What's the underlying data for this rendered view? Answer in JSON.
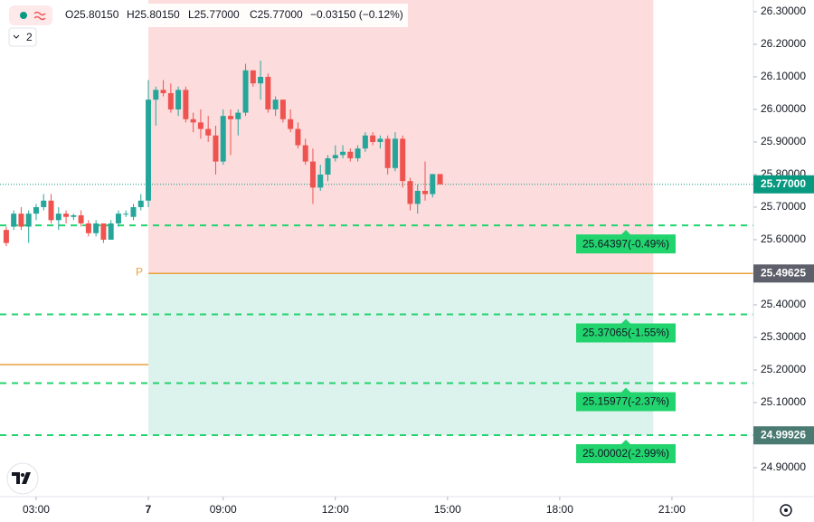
{
  "chart_data": {
    "type": "candlestick",
    "ohlc": [
      "O25.80150",
      "H25.80150",
      "L25.77000",
      "C25.77000",
      "−0.03150 (−0.12%)"
    ],
    "indicator_count": "2",
    "up_color": "#26a69a",
    "down_color": "#ef5350",
    "grid": false,
    "candles": {
      "x": [
        "02:12",
        "02:24",
        "02:36",
        "02:48",
        "03:00",
        "03:12",
        "03:24",
        "03:36",
        "03:48",
        "04:00",
        "04:12",
        "04:24",
        "04:36",
        "04:48",
        "05:00",
        "05:12",
        "05:24",
        "05:36",
        "05:48",
        "07:00",
        "07:12",
        "07:24",
        "07:36",
        "07:48",
        "08:00",
        "08:12",
        "08:24",
        "08:36",
        "08:48",
        "09:00",
        "09:12",
        "09:24",
        "09:36",
        "09:48",
        "10:00",
        "10:12",
        "10:24",
        "10:36",
        "10:48",
        "11:00",
        "11:12",
        "11:24",
        "11:36",
        "11:48",
        "12:00",
        "12:12",
        "12:24",
        "12:36",
        "12:48",
        "13:00",
        "13:12",
        "13:24",
        "13:36",
        "13:48",
        "14:00",
        "14:12",
        "14:24",
        "14:36",
        "14:48"
      ],
      "open": [
        25.63,
        25.64,
        25.68,
        25.64,
        25.68,
        25.7,
        25.72,
        25.66,
        25.68,
        25.67,
        25.675,
        25.65,
        25.62,
        25.65,
        25.6,
        25.65,
        25.68,
        25.67,
        25.7,
        25.72,
        26.03,
        26.06,
        26.05,
        26.0,
        26.06,
        25.97,
        25.96,
        25.94,
        25.92,
        25.84,
        25.98,
        25.97,
        25.99,
        26.12,
        26.08,
        26.1,
        26.0,
        26.03,
        25.97,
        25.94,
        25.89,
        25.84,
        25.76,
        25.8,
        25.85,
        25.86,
        25.87,
        25.85,
        25.88,
        25.92,
        25.9,
        25.91,
        25.82,
        25.91,
        25.78,
        25.71,
        25.75,
        25.74,
        25.8015
      ],
      "high": [
        25.64,
        25.69,
        25.7,
        25.69,
        25.71,
        25.74,
        25.74,
        25.7,
        25.69,
        25.68,
        25.69,
        25.66,
        25.66,
        25.65,
        25.66,
        25.69,
        25.69,
        25.71,
        25.74,
        26.09,
        26.07,
        26.09,
        26.08,
        26.07,
        26.07,
        25.99,
        26.0,
        25.98,
        25.95,
        26.0,
        26.0,
        26.0,
        26.14,
        26.12,
        26.15,
        26.11,
        26.04,
        26.03,
        26.0,
        25.96,
        25.91,
        25.88,
        25.83,
        25.86,
        25.89,
        25.89,
        25.88,
        25.89,
        25.93,
        25.93,
        25.92,
        25.92,
        25.93,
        25.92,
        25.79,
        25.77,
        25.84,
        25.8015,
        25.8015
      ],
      "low": [
        25.58,
        25.63,
        25.63,
        25.59,
        25.66,
        25.69,
        25.65,
        25.63,
        25.65,
        25.66,
        25.64,
        25.61,
        25.61,
        25.59,
        25.6,
        25.64,
        25.67,
        25.66,
        25.69,
        25.7,
        25.95,
        26.04,
        25.99,
        25.98,
        25.96,
        25.93,
        25.91,
        25.9,
        25.8,
        25.83,
        25.86,
        25.92,
        25.98,
        26.07,
        26.03,
        25.99,
        25.98,
        25.96,
        25.93,
        25.88,
        25.83,
        25.71,
        25.75,
        25.78,
        25.84,
        25.85,
        25.84,
        25.84,
        25.87,
        25.89,
        25.88,
        25.8,
        25.81,
        25.76,
        25.69,
        25.68,
        25.72,
        25.73,
        25.77
      ],
      "close": [
        25.59,
        25.68,
        25.64,
        25.68,
        25.7,
        25.72,
        25.66,
        25.68,
        25.67,
        25.675,
        25.65,
        25.62,
        25.65,
        25.6,
        25.65,
        25.68,
        25.68,
        25.7,
        25.72,
        26.03,
        26.06,
        26.05,
        26.0,
        26.06,
        25.97,
        25.96,
        25.94,
        25.92,
        25.84,
        25.98,
        25.97,
        25.99,
        26.12,
        26.08,
        26.1,
        26.0,
        26.03,
        25.97,
        25.94,
        25.89,
        25.84,
        25.76,
        25.8,
        25.85,
        25.86,
        25.87,
        25.85,
        25.88,
        25.92,
        25.9,
        25.91,
        25.82,
        25.91,
        25.78,
        25.71,
        25.75,
        25.74,
        25.8015,
        25.77
      ]
    },
    "ylim": [
      24.811,
      26.336
    ],
    "yticks": [
      {
        "value": 26.3,
        "label": "26.30000"
      },
      {
        "value": 26.2,
        "label": "26.20000"
      },
      {
        "value": 26.1,
        "label": "26.10000"
      },
      {
        "value": 26.0,
        "label": "26.00000"
      },
      {
        "value": 25.9,
        "label": "25.90000"
      },
      {
        "value": 25.8,
        "label": "25.80000"
      },
      {
        "value": 25.7,
        "label": "25.70000"
      },
      {
        "value": 25.6,
        "label": "25.60000"
      },
      {
        "value": 25.4,
        "label": "25.40000"
      },
      {
        "value": 25.3,
        "label": "25.30000"
      },
      {
        "value": 25.2,
        "label": "25.20000"
      },
      {
        "value": 25.1,
        "label": "25.10000"
      },
      {
        "value": 24.9,
        "label": "24.90000"
      }
    ],
    "xticks": [
      "03:00",
      {
        "value": "07:00",
        "label": "7"
      },
      "09:00",
      "12:00",
      "15:00",
      "18:00",
      "21:00"
    ],
    "position": {
      "entry": 25.49625,
      "entry_marker": "P",
      "start": "07:00",
      "end": "20:30",
      "stop_color": "#fcdcdd",
      "target_color": "#dcf2ec",
      "line_color": "#e8a33c"
    },
    "session_line": {
      "value": 25.2167,
      "color": "#e8a33c"
    },
    "levels": [
      {
        "value": 25.64397,
        "label": "25.64397(-0.49%)"
      },
      {
        "value": 25.37065,
        "label": "25.37065(-1.55%)"
      },
      {
        "value": 25.15977,
        "label": "25.15977(-2.37%)"
      },
      {
        "value": 25.00002,
        "label": "25.00002(-2.99%)"
      }
    ],
    "level_color": "#22d46e",
    "price_badges": [
      {
        "value": 25.77,
        "label": "25.77000",
        "color": "#089981"
      },
      {
        "value": 25.49625,
        "label": "25.49625",
        "color": "#5d606b"
      },
      {
        "value": 24.99926,
        "label": "24.99926",
        "color": "#4a7a72"
      }
    ]
  }
}
